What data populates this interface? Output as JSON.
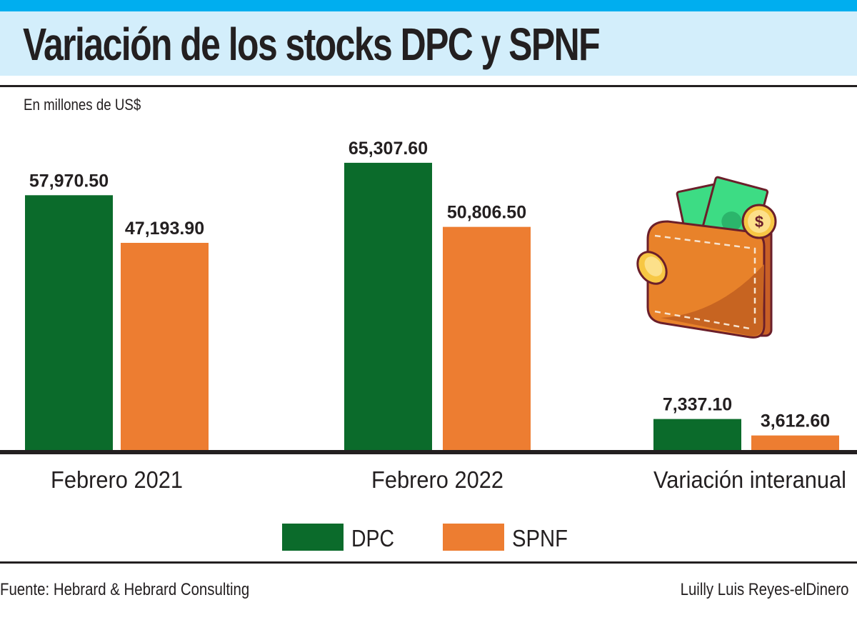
{
  "chart_data": {
    "type": "bar",
    "title": "Variación de los stocks DPC y SPNF",
    "subtitle": "En millones de US$",
    "categories": [
      "Febrero 2021",
      "Febrero 2022",
      "Variación interanual"
    ],
    "series": [
      {
        "name": "DPC",
        "color": "#0b6b2b",
        "values": [
          57970.5,
          65307.6,
          7337.1
        ],
        "labels": [
          "57,970.50",
          "65,307.60",
          "7,337.10"
        ]
      },
      {
        "name": "SPNF",
        "color": "#ed7d31",
        "values": [
          47193.9,
          50806.5,
          3612.6
        ],
        "labels": [
          "47,193.90",
          "50,806.50",
          "3,612.60"
        ]
      }
    ],
    "xlabel": "",
    "ylabel": "",
    "ylim": [
      0,
      80000
    ],
    "grid": false,
    "legend_position": "bottom-center"
  },
  "footer": {
    "source": "Fuente: Hebrard & Hebrard Consulting",
    "credit": "Luilly Luis Reyes-elDinero"
  }
}
